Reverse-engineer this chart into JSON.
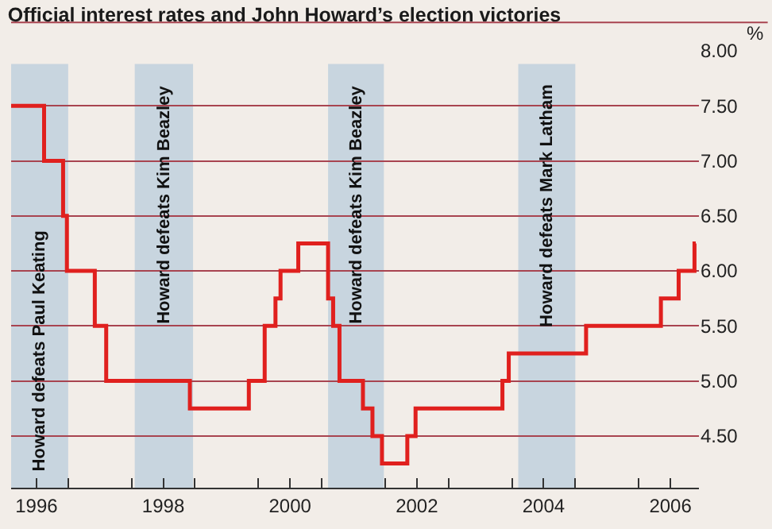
{
  "chart_data": {
    "type": "step",
    "title": "Official interest rates and John Howard’s election victories",
    "ylabel": "%",
    "x": [
      1996.1,
      1996.62,
      1996.92,
      1996.98,
      1997.42,
      1997.6,
      1998.92,
      1999.85,
      2000.1,
      2000.27,
      2000.35,
      2000.63,
      2001.1,
      2001.18,
      2001.28,
      2001.65,
      2001.8,
      2001.95,
      2002.35,
      2002.48,
      2003.85,
      2003.95,
      2005.17,
      2006.35,
      2006.63,
      2006.88,
      2006.9
    ],
    "series": [
      {
        "color": "#e0201e",
        "values": [
          7.5,
          7.0,
          6.5,
          6.0,
          5.5,
          5.0,
          4.75,
          5.0,
          5.5,
          5.75,
          6.0,
          6.25,
          5.75,
          5.5,
          5.0,
          4.75,
          4.5,
          4.25,
          4.5,
          4.75,
          5.0,
          5.25,
          5.5,
          5.75,
          6.0,
          6.25,
          6.25
        ]
      }
    ],
    "xlim": [
      1996.1,
      2006.95
    ],
    "ylim": [
      4.03,
      8.0
    ],
    "xticks": [
      {
        "value": 1996.5,
        "label": "1996"
      },
      {
        "value": 1997,
        "label": null
      },
      {
        "value": 1998,
        "label": null
      },
      {
        "value": 1998.5,
        "label": "1998"
      },
      {
        "value": 1999,
        "label": null
      },
      {
        "value": 2000,
        "label": null
      },
      {
        "value": 2000.5,
        "label": "2000"
      },
      {
        "value": 2001,
        "label": null
      },
      {
        "value": 2002,
        "label": null
      },
      {
        "value": 2002.5,
        "label": "2002"
      },
      {
        "value": 2003,
        "label": null
      },
      {
        "value": 2004,
        "label": null
      },
      {
        "value": 2004.5,
        "label": "2004"
      },
      {
        "value": 2005,
        "label": null
      },
      {
        "value": 2006,
        "label": null
      },
      {
        "value": 2006.5,
        "label": "2006"
      }
    ],
    "yticks": [
      {
        "value": 4.5,
        "label": "4.50"
      },
      {
        "value": 5.0,
        "label": "5.00"
      },
      {
        "value": 5.5,
        "label": "5.50"
      },
      {
        "value": 6.0,
        "label": "6.00"
      },
      {
        "value": 6.5,
        "label": "6.50"
      },
      {
        "value": 7.0,
        "label": "7.00"
      },
      {
        "value": 7.5,
        "label": "7.50"
      },
      {
        "value": 8.0,
        "label": "8.00"
      }
    ],
    "bands": [
      {
        "axis": "x",
        "from": 1996.1,
        "to": 1997.0,
        "label": "Howard defeats Paul Keating",
        "color": "#c8d5df"
      },
      {
        "axis": "x",
        "from": 1998.05,
        "to": 1998.97,
        "label": "Howard defeats Kim Beazley",
        "color": "#c8d5df"
      },
      {
        "axis": "x",
        "from": 2001.1,
        "to": 2001.98,
        "label": "Howard defeats Kim Beazley",
        "color": "#c8d5df"
      },
      {
        "axis": "x",
        "from": 2004.1,
        "to": 2005.0,
        "label": "Howard defeats Mark Latham",
        "color": "#c8d5df"
      }
    ],
    "grid": "y",
    "line_style": "solid",
    "marker": "none"
  }
}
